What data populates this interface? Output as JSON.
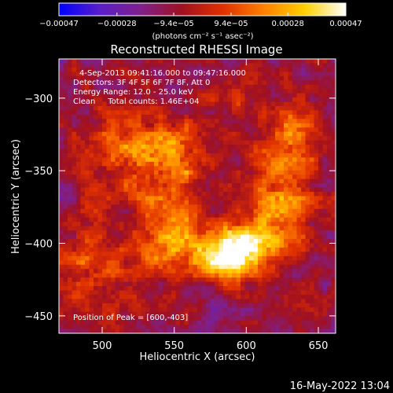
{
  "chart_data": {
    "type": "heatmap",
    "title": "Reconstructed RHESSI Image",
    "xlabel": "Heliocentric X (arcsec)",
    "ylabel": "Heliocentric Y (arcsec)",
    "xlim": [
      470,
      662
    ],
    "ylim": [
      -462,
      -273
    ],
    "x_ticks": [
      500,
      550,
      600,
      650
    ],
    "y_ticks": [
      -300,
      -350,
      -400,
      -450
    ],
    "x_tick_labels": [
      "500",
      "550",
      "600",
      "650"
    ],
    "y_tick_labels": [
      "−300",
      "−350",
      "−400",
      "−450"
    ],
    "colorbar": {
      "range": [
        -0.00047,
        0.00047
      ],
      "ticks": [
        -0.00047,
        -0.00028,
        -9.4e-05,
        9.4e-05,
        0.00028,
        0.00047
      ],
      "tick_labels": [
        "−0.00047",
        "−0.00028",
        "−9.4e−05",
        "9.4e−05",
        "0.00028",
        "0.00047"
      ],
      "units_label": "(photons cm⁻² s⁻¹ asec⁻²)",
      "colormap": [
        "#0000ff",
        "#5a1ec8",
        "#80208a",
        "#a01020",
        "#e03000",
        "#ff8000",
        "#ffd000",
        "#ffffff"
      ]
    },
    "annotations": [
      "4-Sep-2013 09:41:16.000 to 09:47:16.000",
      "Detectors: 3F 4F 5F 6F 7F 8F, Att 0",
      "Energy Range: 12.0 - 25.0 keV",
      "Clean     Total counts: 1.46E+04",
      "Position of Peak = [600,-403]"
    ],
    "peak": {
      "x": 600,
      "y": -403
    },
    "features": [
      {
        "x": 540,
        "y": -345,
        "sx": 26,
        "sy": 20,
        "amp": 0.00034
      },
      {
        "x": 548,
        "y": -395,
        "sx": 18,
        "sy": 14,
        "amp": 0.00026
      },
      {
        "x": 600,
        "y": -403,
        "sx": 14,
        "sy": 12,
        "amp": 0.00047
      },
      {
        "x": 575,
        "y": -410,
        "sx": 20,
        "sy": 12,
        "amp": 0.00034
      },
      {
        "x": 625,
        "y": -375,
        "sx": 16,
        "sy": 22,
        "amp": 0.00033
      },
      {
        "x": 632,
        "y": -325,
        "sx": 14,
        "sy": 16,
        "amp": 0.00026
      },
      {
        "x": 495,
        "y": -420,
        "sx": 22,
        "sy": 22,
        "amp": 0.00024
      },
      {
        "x": 590,
        "y": -300,
        "sx": 18,
        "sy": 12,
        "amp": 0.00014
      },
      {
        "x": 500,
        "y": -330,
        "sx": 16,
        "sy": 14,
        "amp": 0.00012
      }
    ],
    "background": -0.00012
  },
  "footer": {
    "timestamp": "16-May-2022 13:04"
  }
}
